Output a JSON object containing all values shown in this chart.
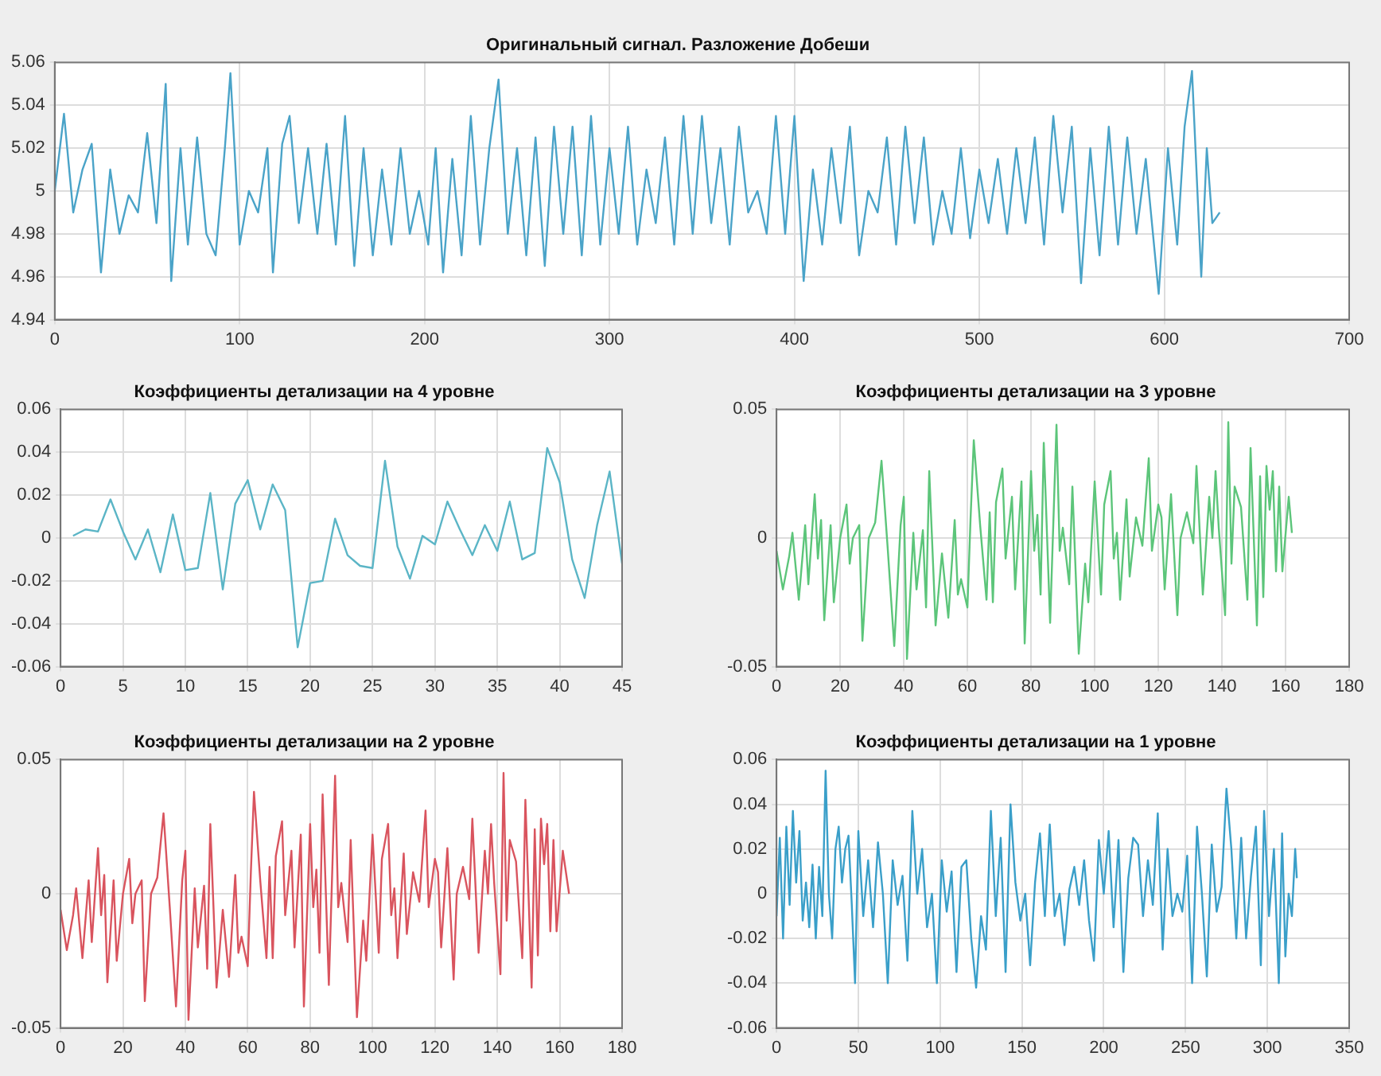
{
  "chart_data": [
    {
      "type": "line",
      "title": "Оригинальный сигнал. Разложение Добеши",
      "color": "#4aa3c8",
      "grid": true,
      "xlim": [
        0,
        700
      ],
      "xticks": [
        0,
        100,
        200,
        300,
        400,
        500,
        600,
        700
      ],
      "ylim": [
        4.94,
        5.06
      ],
      "yticks": [
        4.94,
        4.96,
        4.98,
        5,
        5.02,
        5.04,
        5.06
      ],
      "x": [
        0,
        5,
        10,
        15,
        20,
        25,
        30,
        35,
        40,
        45,
        50,
        55,
        60,
        63,
        68,
        72,
        77,
        82,
        87,
        92,
        95,
        100,
        105,
        110,
        115,
        118,
        123,
        127,
        132,
        137,
        142,
        147,
        152,
        157,
        162,
        167,
        172,
        177,
        182,
        187,
        192,
        197,
        202,
        206,
        210,
        215,
        220,
        225,
        230,
        235,
        240,
        245,
        250,
        255,
        260,
        265,
        270,
        275,
        280,
        285,
        290,
        295,
        300,
        305,
        310,
        315,
        320,
        325,
        330,
        335,
        340,
        345,
        350,
        355,
        360,
        365,
        370,
        375,
        380,
        385,
        390,
        395,
        400,
        405,
        410,
        415,
        420,
        425,
        430,
        435,
        440,
        445,
        450,
        455,
        460,
        465,
        470,
        475,
        480,
        485,
        490,
        495,
        500,
        505,
        510,
        515,
        520,
        525,
        530,
        535,
        540,
        545,
        550,
        555,
        560,
        565,
        570,
        575,
        580,
        585,
        590,
        597,
        602,
        607,
        611,
        615,
        620,
        623,
        626,
        630
      ],
      "values": [
        5.0,
        5.036,
        4.99,
        5.01,
        5.022,
        4.962,
        5.01,
        4.98,
        4.998,
        4.99,
        5.027,
        4.985,
        5.05,
        4.958,
        5.02,
        4.975,
        5.025,
        4.98,
        4.97,
        5.02,
        5.055,
        4.975,
        5.0,
        4.99,
        5.02,
        4.962,
        5.022,
        5.035,
        4.985,
        5.02,
        4.98,
        5.022,
        4.975,
        5.035,
        4.965,
        5.02,
        4.97,
        5.01,
        4.975,
        5.02,
        4.98,
        5.0,
        4.975,
        5.02,
        4.962,
        5.015,
        4.97,
        5.035,
        4.975,
        5.02,
        5.052,
        4.98,
        5.02,
        4.97,
        5.025,
        4.965,
        5.03,
        4.98,
        5.03,
        4.97,
        5.035,
        4.975,
        5.02,
        4.98,
        5.03,
        4.975,
        5.01,
        4.985,
        5.025,
        4.975,
        5.035,
        4.98,
        5.035,
        4.985,
        5.02,
        4.975,
        5.03,
        4.99,
        5.0,
        4.98,
        5.035,
        4.98,
        5.035,
        4.958,
        5.01,
        4.975,
        5.02,
        4.985,
        5.03,
        4.97,
        5.0,
        4.99,
        5.025,
        4.975,
        5.03,
        4.985,
        5.025,
        4.975,
        5.0,
        4.98,
        5.02,
        4.978,
        5.01,
        4.985,
        5.015,
        4.98,
        5.02,
        4.985,
        5.025,
        4.975,
        5.035,
        4.99,
        5.03,
        4.957,
        5.02,
        4.97,
        5.03,
        4.975,
        5.025,
        4.98,
        5.015,
        4.952,
        5.02,
        4.975,
        5.03,
        5.056,
        4.96,
        5.02,
        4.985,
        4.99
      ]
    },
    {
      "type": "line",
      "title": "Коэффициенты детализации на 4 уровне",
      "color": "#5bb5c6",
      "grid": true,
      "xlim": [
        0,
        45
      ],
      "xticks": [
        0,
        5,
        10,
        15,
        20,
        25,
        30,
        35,
        40,
        45
      ],
      "ylim": [
        -0.06,
        0.06
      ],
      "yticks": [
        -0.06,
        -0.04,
        -0.02,
        0,
        0.02,
        0.04,
        0.06
      ],
      "x": [
        1,
        2,
        3,
        4,
        5,
        6,
        7,
        8,
        9,
        10,
        11,
        12,
        13,
        14,
        15,
        16,
        17,
        18,
        19,
        20,
        21,
        22,
        23,
        24,
        25,
        26,
        27,
        28,
        29,
        30,
        31,
        32,
        33,
        34,
        35,
        36,
        37,
        38,
        39,
        40,
        41,
        42,
        43,
        44,
        45
      ],
      "values": [
        0.001,
        0.004,
        0.003,
        0.018,
        0.003,
        -0.01,
        0.004,
        -0.016,
        0.011,
        -0.015,
        -0.014,
        0.021,
        -0.024,
        0.016,
        0.027,
        0.004,
        0.025,
        0.013,
        -0.051,
        -0.021,
        -0.02,
        0.009,
        -0.008,
        -0.013,
        -0.014,
        0.036,
        -0.004,
        -0.019,
        0.001,
        -0.003,
        0.017,
        0.004,
        -0.008,
        0.006,
        -0.006,
        0.017,
        -0.01,
        -0.007,
        0.042,
        0.026,
        -0.01,
        -0.028,
        0.006,
        0.031,
        -0.012
      ]
    },
    {
      "type": "line",
      "title": "Коэффициенты детализации на 3 уровне",
      "color": "#5cc57a",
      "grid": true,
      "xlim": [
        0,
        180
      ],
      "xticks": [
        0,
        20,
        40,
        60,
        80,
        100,
        120,
        140,
        160,
        180
      ],
      "ylim": [
        -0.05,
        0.05
      ],
      "yticks": [
        -0.05,
        0,
        0.05
      ],
      "x": [
        0,
        2,
        4,
        5,
        7,
        9,
        10,
        12,
        13,
        14,
        15,
        17,
        18,
        20,
        22,
        23,
        24,
        26,
        27,
        29,
        31,
        33,
        35,
        37,
        39,
        40,
        41,
        43,
        44,
        46,
        47,
        48,
        50,
        52,
        54,
        56,
        57,
        58,
        60,
        61,
        62,
        64,
        66,
        67,
        68,
        69,
        71,
        72,
        74,
        75,
        77,
        78,
        80,
        81,
        82,
        83,
        84,
        86,
        88,
        89,
        90,
        92,
        93,
        95,
        97,
        98,
        100,
        102,
        103,
        105,
        106,
        107,
        108,
        110,
        111,
        113,
        115,
        117,
        118,
        120,
        121,
        122,
        124,
        126,
        127,
        129,
        131,
        132,
        134,
        136,
        137,
        138,
        139,
        141,
        142,
        143,
        144,
        146,
        148,
        149,
        151,
        152,
        153,
        154,
        155,
        156,
        157,
        158,
        159,
        161,
        162
      ],
      "values": [
        -0.005,
        -0.02,
        -0.007,
        0.002,
        -0.024,
        0.005,
        -0.018,
        0.017,
        -0.008,
        0.007,
        -0.032,
        0.005,
        -0.025,
        0.0,
        0.013,
        -0.01,
        0.0,
        0.005,
        -0.04,
        0.0,
        0.006,
        0.03,
        -0.005,
        -0.042,
        0.005,
        0.016,
        -0.047,
        0.002,
        -0.02,
        0.003,
        -0.027,
        0.026,
        -0.034,
        -0.006,
        -0.031,
        0.007,
        -0.022,
        -0.016,
        -0.027,
        0.008,
        0.038,
        0.005,
        -0.024,
        0.01,
        -0.025,
        0.014,
        0.027,
        -0.008,
        0.016,
        -0.02,
        0.022,
        -0.041,
        0.026,
        -0.005,
        0.009,
        -0.022,
        0.037,
        -0.033,
        0.044,
        -0.005,
        0.004,
        -0.018,
        0.02,
        -0.045,
        -0.01,
        -0.025,
        0.022,
        -0.022,
        0.013,
        0.026,
        -0.008,
        0.002,
        -0.024,
        0.015,
        -0.015,
        0.008,
        -0.003,
        0.031,
        -0.005,
        0.013,
        0.008,
        -0.02,
        0.017,
        -0.03,
        0.0,
        0.01,
        -0.002,
        0.028,
        -0.022,
        0.016,
        0.0,
        0.026,
        0.004,
        -0.03,
        0.045,
        -0.01,
        0.02,
        0.012,
        -0.024,
        0.035,
        -0.034,
        0.024,
        -0.023,
        0.028,
        0.011,
        0.026,
        -0.013,
        0.02,
        -0.013,
        0.016,
        0.002
      ]
    },
    {
      "type": "line",
      "title": "Коэффициенты детализации на 2 уровне",
      "color": "#d9545e",
      "grid": true,
      "xlim": [
        0,
        180
      ],
      "xticks": [
        0,
        20,
        40,
        60,
        80,
        100,
        120,
        140,
        160,
        180
      ],
      "ylim": [
        -0.05,
        0.05
      ],
      "yticks": [
        -0.05,
        0,
        0.05
      ],
      "x": [
        0,
        2,
        4,
        5,
        7,
        9,
        10,
        12,
        13,
        14,
        15,
        17,
        18,
        20,
        22,
        23,
        24,
        26,
        27,
        29,
        31,
        33,
        35,
        37,
        39,
        40,
        41,
        43,
        44,
        46,
        47,
        48,
        50,
        52,
        54,
        56,
        57,
        58,
        60,
        61,
        62,
        64,
        66,
        67,
        68,
        69,
        71,
        72,
        74,
        75,
        77,
        78,
        80,
        81,
        82,
        83,
        84,
        86,
        88,
        89,
        90,
        92,
        93,
        95,
        97,
        98,
        100,
        102,
        103,
        105,
        106,
        107,
        108,
        110,
        111,
        113,
        115,
        117,
        118,
        120,
        121,
        122,
        124,
        126,
        127,
        129,
        131,
        132,
        134,
        136,
        137,
        138,
        139,
        141,
        142,
        143,
        144,
        146,
        148,
        149,
        151,
        152,
        153,
        154,
        155,
        156,
        157,
        158,
        159,
        161,
        163
      ],
      "values": [
        -0.006,
        -0.021,
        -0.008,
        0.002,
        -0.024,
        0.005,
        -0.018,
        0.017,
        -0.008,
        0.007,
        -0.033,
        0.005,
        -0.025,
        0.0,
        0.013,
        -0.011,
        0.0,
        0.005,
        -0.04,
        0.0,
        0.006,
        0.03,
        -0.005,
        -0.042,
        0.005,
        0.016,
        -0.047,
        0.002,
        -0.02,
        0.003,
        -0.028,
        0.026,
        -0.035,
        -0.006,
        -0.031,
        0.007,
        -0.022,
        -0.016,
        -0.027,
        0.008,
        0.038,
        0.005,
        -0.024,
        0.01,
        -0.024,
        0.014,
        0.027,
        -0.008,
        0.016,
        -0.02,
        0.022,
        -0.042,
        0.026,
        -0.005,
        0.009,
        -0.022,
        0.037,
        -0.034,
        0.044,
        -0.005,
        0.004,
        -0.018,
        0.02,
        -0.046,
        -0.01,
        -0.025,
        0.022,
        -0.022,
        0.013,
        0.026,
        -0.008,
        0.002,
        -0.024,
        0.015,
        -0.015,
        0.008,
        -0.003,
        0.031,
        -0.005,
        0.013,
        0.008,
        -0.02,
        0.017,
        -0.032,
        0.0,
        0.01,
        -0.002,
        0.028,
        -0.022,
        0.016,
        0.0,
        0.026,
        0.004,
        -0.03,
        0.045,
        -0.01,
        0.02,
        0.012,
        -0.024,
        0.035,
        -0.035,
        0.024,
        -0.023,
        0.028,
        0.011,
        0.026,
        -0.014,
        0.02,
        -0.014,
        0.016,
        0.0
      ]
    },
    {
      "type": "line",
      "title": "Коэффициенты детализации на 1 уровне",
      "color": "#3a9fc9",
      "grid": true,
      "xlim": [
        0,
        350
      ],
      "xticks": [
        0,
        50,
        100,
        150,
        200,
        250,
        300,
        350
      ],
      "ylim": [
        -0.06,
        0.06
      ],
      "yticks": [
        -0.06,
        -0.04,
        -0.02,
        0,
        0.02,
        0.04,
        0.06
      ],
      "x": [
        0,
        2,
        4,
        6,
        8,
        10,
        12,
        14,
        16,
        18,
        20,
        22,
        24,
        26,
        28,
        30,
        32,
        34,
        36,
        38,
        40,
        42,
        44,
        46,
        48,
        50,
        53,
        56,
        59,
        62,
        65,
        68,
        71,
        74,
        77,
        80,
        83,
        86,
        89,
        92,
        95,
        98,
        101,
        104,
        107,
        110,
        113,
        116,
        119,
        122,
        125,
        128,
        131,
        134,
        137,
        140,
        143,
        146,
        149,
        152,
        155,
        158,
        161,
        164,
        167,
        170,
        173,
        176,
        179,
        182,
        185,
        188,
        191,
        194,
        197,
        200,
        203,
        206,
        209,
        212,
        215,
        218,
        221,
        224,
        227,
        230,
        233,
        236,
        239,
        242,
        245,
        248,
        251,
        254,
        257,
        260,
        263,
        266,
        269,
        272,
        275,
        278,
        281,
        284,
        287,
        290,
        293,
        296,
        298,
        301,
        304,
        307,
        309,
        311,
        313,
        315,
        317,
        318
      ],
      "values": [
        -0.01,
        0.025,
        -0.02,
        0.03,
        -0.005,
        0.037,
        0.005,
        0.028,
        -0.012,
        0.005,
        -0.015,
        0.013,
        -0.02,
        0.012,
        -0.01,
        0.055,
        0.0,
        -0.02,
        0.02,
        0.03,
        0.005,
        0.02,
        0.026,
        -0.005,
        -0.04,
        0.028,
        -0.01,
        0.015,
        -0.015,
        0.023,
        0.0,
        -0.04,
        0.015,
        -0.005,
        0.008,
        -0.03,
        0.037,
        0.0,
        0.02,
        -0.015,
        0.0,
        -0.04,
        0.015,
        -0.008,
        0.01,
        -0.035,
        0.012,
        0.015,
        -0.02,
        -0.042,
        -0.01,
        -0.025,
        0.037,
        -0.01,
        0.025,
        -0.035,
        0.04,
        0.005,
        -0.012,
        0.0,
        -0.032,
        0.005,
        0.027,
        -0.01,
        0.031,
        -0.01,
        0.0,
        -0.023,
        0.002,
        0.012,
        -0.005,
        0.015,
        -0.012,
        -0.03,
        0.024,
        0.0,
        0.028,
        -0.015,
        0.024,
        -0.035,
        0.007,
        0.025,
        0.022,
        -0.01,
        0.015,
        -0.005,
        0.036,
        -0.025,
        0.02,
        -0.01,
        0.0,
        -0.008,
        0.017,
        -0.04,
        0.03,
        0.0,
        -0.037,
        0.022,
        -0.008,
        0.003,
        0.047,
        0.02,
        -0.02,
        0.025,
        -0.02,
        0.008,
        0.03,
        -0.032,
        0.037,
        -0.01,
        0.02,
        -0.04,
        0.027,
        -0.028,
        0.0,
        -0.01,
        0.02,
        0.007
      ]
    }
  ]
}
